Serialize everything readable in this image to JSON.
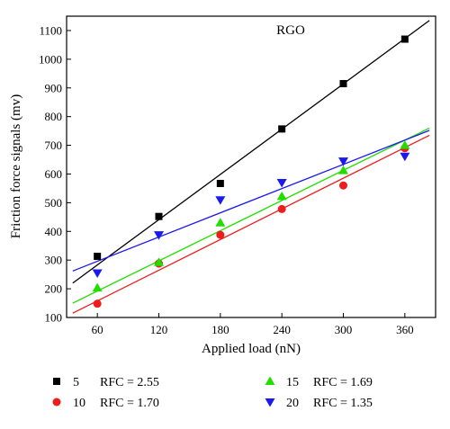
{
  "chart_data": {
    "type": "scatter",
    "annotation": "RGO",
    "xlabel": "Applied load (nN)",
    "ylabel": "Friction force signals (mv)",
    "xlim": [
      30,
      390
    ],
    "ylim": [
      100,
      1150
    ],
    "xticks": [
      60,
      120,
      180,
      240,
      300,
      360
    ],
    "yticks": [
      100,
      200,
      300,
      400,
      500,
      600,
      700,
      800,
      900,
      1000,
      1100
    ],
    "grid": false,
    "legend_position": "bottom",
    "x": [
      60,
      120,
      180,
      240,
      300,
      360
    ],
    "series": [
      {
        "name": "5",
        "rfc_label": "RFC = 2.55",
        "color": "#000000",
        "marker": "square",
        "values": [
          313,
          452,
          567,
          757,
          915,
          1070
        ],
        "fit": {
          "x": [
            36,
            384
          ],
          "y": [
            220,
            1135
          ]
        }
      },
      {
        "name": "10",
        "rfc_label": "RFC = 1.70",
        "color": "#ee1c1c",
        "marker": "circle",
        "values": [
          148,
          288,
          388,
          478,
          560,
          690
        ],
        "fit": {
          "x": [
            36,
            384
          ],
          "y": [
            115,
            735
          ]
        }
      },
      {
        "name": "15",
        "rfc_label": "RFC = 1.69",
        "color": "#22dd00",
        "marker": "triangle-up",
        "values": [
          203,
          292,
          430,
          522,
          612,
          700
        ],
        "fit": {
          "x": [
            36,
            384
          ],
          "y": [
            150,
            760
          ]
        }
      },
      {
        "name": "20",
        "rfc_label": "RFC = 1.35",
        "color": "#1a1aee",
        "marker": "triangle-down",
        "values": [
          255,
          388,
          510,
          570,
          645,
          662
        ],
        "fit": {
          "x": [
            36,
            384
          ],
          "y": [
            262,
            752
          ]
        }
      }
    ]
  }
}
